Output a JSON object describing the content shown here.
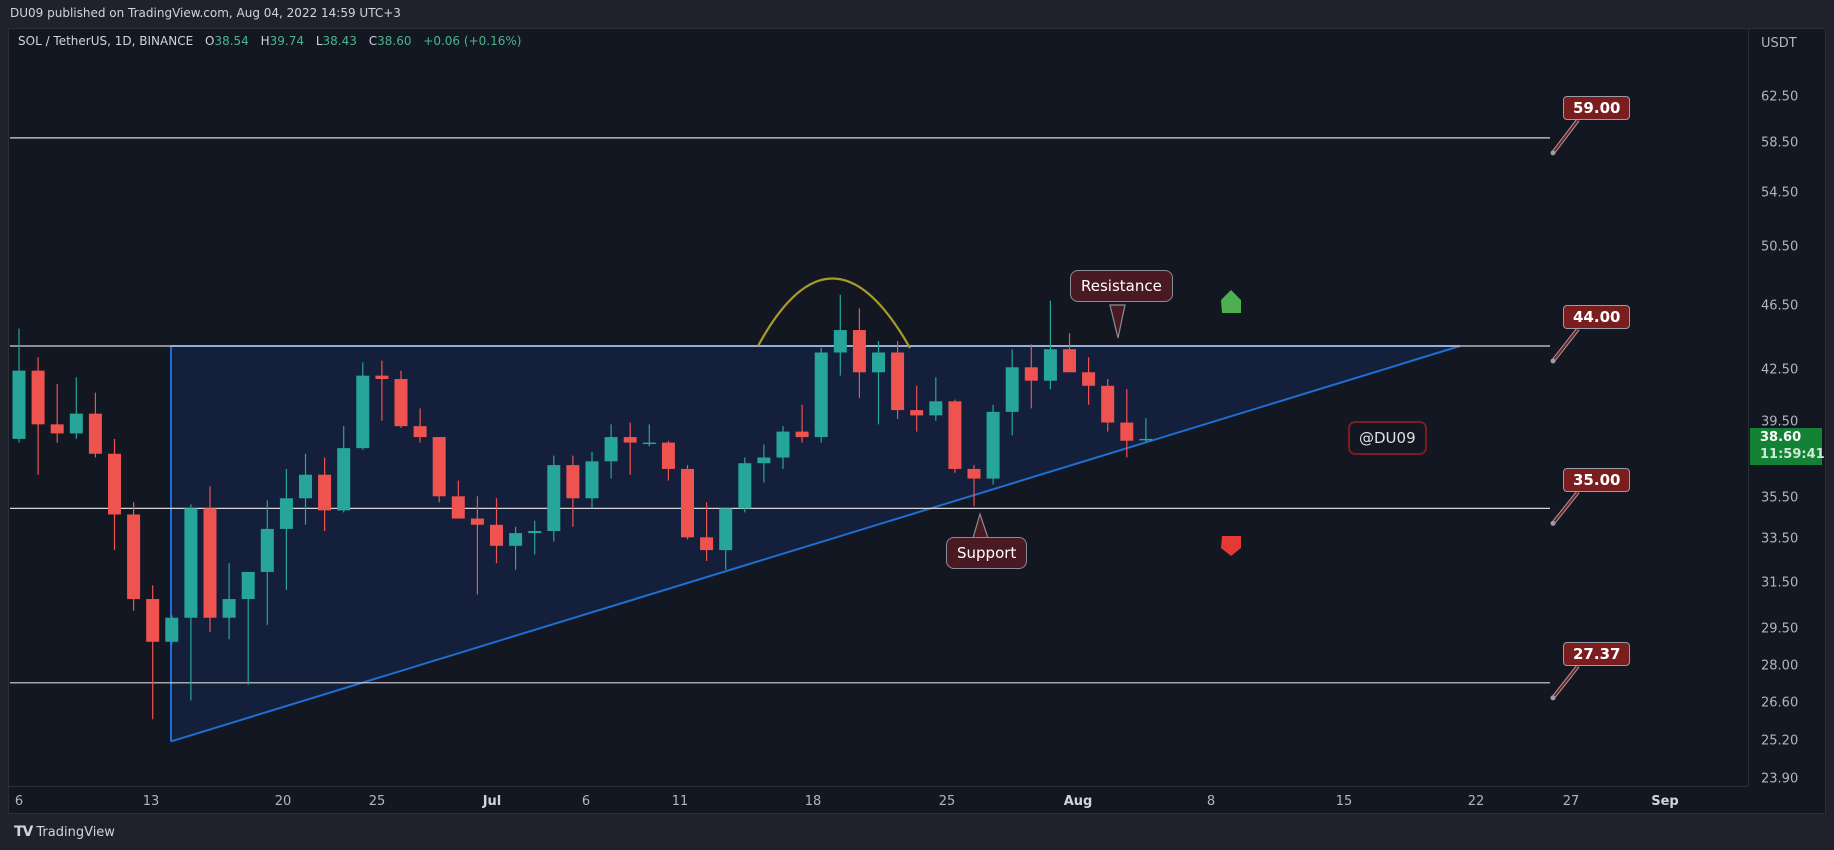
{
  "header": {
    "published": "DU09 published on TradingView.com, Aug 04, 2022 14:59 UTC+3"
  },
  "legend": {
    "symbol": "SOL / TetherUS, 1D, BINANCE",
    "open_label": "O",
    "open": "38.54",
    "high_label": "H",
    "high": "39.74",
    "low_label": "L",
    "low": "38.43",
    "close_label": "C",
    "close": "38.60",
    "change": "+0.06 (+0.16%)"
  },
  "price_axis": {
    "unit": "USDT",
    "ticks": [
      "62.50",
      "58.50",
      "54.50",
      "50.50",
      "46.50",
      "42.50",
      "39.50",
      "35.50",
      "33.50",
      "31.50",
      "29.50",
      "28.00",
      "26.60",
      "25.20",
      "23.90"
    ],
    "last_price": "38.60",
    "countdown": "11:59:41"
  },
  "time_axis": {
    "ticks": [
      "6",
      "13",
      "20",
      "25",
      "Jul",
      "6",
      "11",
      "18",
      "25",
      "Aug",
      "8",
      "15",
      "22",
      "27",
      "Sep"
    ]
  },
  "annotations": {
    "levels": [
      "59.00",
      "44.00",
      "35.00",
      "27.37"
    ],
    "resistance": "Resistance",
    "support": "Support",
    "watermark": "@DU09"
  },
  "footer": {
    "brand": "TradingView",
    "logo": "TV"
  },
  "colors": {
    "up": "#26a69a",
    "down": "#ef5350",
    "background": "#131722",
    "triangle_fill": "#13203d",
    "triangle_line": "#1e6fd1",
    "arc": "#a89a2a",
    "label_red": "#7a1d1f",
    "last_price_badge": "#138234"
  },
  "chart_data": {
    "type": "candlestick",
    "title": "SOL / TetherUS, 1D, BINANCE",
    "xlabel": "",
    "ylabel": "USDT",
    "y_scale": "log",
    "ylim": [
      23.9,
      64
    ],
    "x_range": [
      "Jun 6, 2022",
      "Sep 2022"
    ],
    "horizontal_levels": [
      59.0,
      44.0,
      35.0,
      27.37
    ],
    "pattern": "ascending triangle (resistance ~44, rising support from ~25.2 on Jun 14 to ~44 near Aug 21)",
    "last": {
      "open": 38.54,
      "high": 39.74,
      "low": 38.43,
      "close": 38.6,
      "change": 0.06,
      "change_pct": 0.16
    },
    "candles": [
      {
        "date": "Jun 6",
        "o": 38.6,
        "h": 45.1,
        "l": 38.4,
        "c": 42.5
      },
      {
        "date": "Jun 7",
        "o": 42.5,
        "h": 43.3,
        "l": 36.7,
        "c": 39.4
      },
      {
        "date": "Jun 8",
        "o": 39.4,
        "h": 41.7,
        "l": 38.4,
        "c": 38.9
      },
      {
        "date": "Jun 9",
        "o": 38.9,
        "h": 42.1,
        "l": 38.6,
        "c": 40.0
      },
      {
        "date": "Jun 10",
        "o": 40.0,
        "h": 41.2,
        "l": 37.6,
        "c": 37.8
      },
      {
        "date": "Jun 11",
        "o": 37.8,
        "h": 38.6,
        "l": 33.0,
        "c": 34.7
      },
      {
        "date": "Jun 12",
        "o": 34.7,
        "h": 35.3,
        "l": 30.3,
        "c": 30.8
      },
      {
        "date": "Jun 13",
        "o": 30.8,
        "h": 31.4,
        "l": 26.0,
        "c": 29.0
      },
      {
        "date": "Jun 14",
        "o": 29.0,
        "h": 30.1,
        "l": 28.9,
        "c": 30.0
      },
      {
        "date": "Jun 15",
        "o": 30.0,
        "h": 35.2,
        "l": 26.7,
        "c": 35.0
      },
      {
        "date": "Jun 16",
        "o": 35.0,
        "h": 36.1,
        "l": 29.4,
        "c": 30.0
      },
      {
        "date": "Jun 17",
        "o": 30.0,
        "h": 32.4,
        "l": 29.1,
        "c": 30.8
      },
      {
        "date": "Jun 18",
        "o": 30.8,
        "h": 31.5,
        "l": 27.3,
        "c": 32.0
      },
      {
        "date": "Jun 19",
        "o": 32.0,
        "h": 35.4,
        "l": 29.7,
        "c": 34.0
      },
      {
        "date": "Jun 20",
        "o": 34.0,
        "h": 37.0,
        "l": 31.2,
        "c": 35.5
      },
      {
        "date": "Jun 21",
        "o": 35.5,
        "h": 37.8,
        "l": 34.2,
        "c": 36.7
      },
      {
        "date": "Jun 22",
        "o": 36.7,
        "h": 37.6,
        "l": 33.9,
        "c": 34.9
      },
      {
        "date": "Jun 23",
        "o": 34.9,
        "h": 39.3,
        "l": 34.8,
        "c": 38.1
      },
      {
        "date": "Jun 24",
        "o": 38.1,
        "h": 43.0,
        "l": 38.0,
        "c": 42.2
      },
      {
        "date": "Jun 25",
        "o": 42.2,
        "h": 43.1,
        "l": 39.6,
        "c": 42.0
      },
      {
        "date": "Jun 26",
        "o": 42.0,
        "h": 42.5,
        "l": 39.2,
        "c": 39.3
      },
      {
        "date": "Jun 27",
        "o": 39.3,
        "h": 40.3,
        "l": 38.4,
        "c": 38.7
      },
      {
        "date": "Jun 28",
        "o": 38.7,
        "h": 38.7,
        "l": 35.3,
        "c": 35.6
      },
      {
        "date": "Jun 29",
        "o": 35.6,
        "h": 36.4,
        "l": 34.9,
        "c": 34.5
      },
      {
        "date": "Jun 30",
        "o": 34.5,
        "h": 35.6,
        "l": 31.0,
        "c": 34.2
      },
      {
        "date": "Jul 1",
        "o": 34.2,
        "h": 35.5,
        "l": 32.4,
        "c": 33.2
      },
      {
        "date": "Jul 2",
        "o": 33.2,
        "h": 34.1,
        "l": 32.1,
        "c": 33.8
      },
      {
        "date": "Jul 3",
        "o": 33.8,
        "h": 34.4,
        "l": 32.8,
        "c": 33.9
      },
      {
        "date": "Jul 4",
        "o": 33.9,
        "h": 37.7,
        "l": 33.4,
        "c": 37.2
      },
      {
        "date": "Jul 5",
        "o": 37.2,
        "h": 37.7,
        "l": 34.1,
        "c": 35.5
      },
      {
        "date": "Jul 6",
        "o": 35.5,
        "h": 37.9,
        "l": 35.0,
        "c": 37.4
      },
      {
        "date": "Jul 7",
        "o": 37.4,
        "h": 39.4,
        "l": 36.5,
        "c": 38.7
      },
      {
        "date": "Jul 8",
        "o": 38.7,
        "h": 39.5,
        "l": 36.7,
        "c": 38.4
      },
      {
        "date": "Jul 9",
        "o": 38.4,
        "h": 39.4,
        "l": 38.2,
        "c": 38.4
      },
      {
        "date": "Jul 10",
        "o": 38.4,
        "h": 38.5,
        "l": 36.4,
        "c": 37.0
      },
      {
        "date": "Jul 11",
        "o": 37.0,
        "h": 37.2,
        "l": 33.5,
        "c": 33.6
      },
      {
        "date": "Jul 12",
        "o": 33.6,
        "h": 35.3,
        "l": 32.5,
        "c": 33.0
      },
      {
        "date": "Jul 13",
        "o": 33.0,
        "h": 35.0,
        "l": 32.1,
        "c": 35.0
      },
      {
        "date": "Jul 14",
        "o": 35.0,
        "h": 37.6,
        "l": 34.8,
        "c": 37.3
      },
      {
        "date": "Jul 15",
        "o": 37.3,
        "h": 38.3,
        "l": 36.3,
        "c": 37.6
      },
      {
        "date": "Jul 16",
        "o": 37.6,
        "h": 39.3,
        "l": 37.0,
        "c": 39.0
      },
      {
        "date": "Jul 17",
        "o": 39.0,
        "h": 40.5,
        "l": 38.4,
        "c": 38.7
      },
      {
        "date": "Jul 18",
        "o": 38.7,
        "h": 43.9,
        "l": 38.4,
        "c": 43.6
      },
      {
        "date": "Jul 19",
        "o": 43.6,
        "h": 47.3,
        "l": 42.2,
        "c": 45.0
      },
      {
        "date": "Jul 20",
        "o": 45.0,
        "h": 46.4,
        "l": 40.9,
        "c": 42.4
      },
      {
        "date": "Jul 21",
        "o": 42.4,
        "h": 44.3,
        "l": 39.4,
        "c": 43.6
      },
      {
        "date": "Jul 22",
        "o": 43.6,
        "h": 44.3,
        "l": 39.7,
        "c": 40.2
      },
      {
        "date": "Jul 23",
        "o": 40.2,
        "h": 41.6,
        "l": 39.0,
        "c": 39.9
      },
      {
        "date": "Jul 24",
        "o": 39.9,
        "h": 42.1,
        "l": 39.6,
        "c": 40.7
      },
      {
        "date": "Jul 25",
        "o": 40.7,
        "h": 40.8,
        "l": 36.8,
        "c": 37.0
      },
      {
        "date": "Jul 26",
        "o": 37.0,
        "h": 37.2,
        "l": 35.1,
        "c": 36.5
      },
      {
        "date": "Jul 27",
        "o": 36.5,
        "h": 40.5,
        "l": 36.2,
        "c": 40.1
      },
      {
        "date": "Jul 28",
        "o": 40.1,
        "h": 43.8,
        "l": 38.8,
        "c": 42.7
      },
      {
        "date": "Jul 29",
        "o": 42.7,
        "h": 44.1,
        "l": 40.3,
        "c": 41.9
      },
      {
        "date": "Jul 30",
        "o": 41.9,
        "h": 46.9,
        "l": 41.4,
        "c": 43.8
      },
      {
        "date": "Jul 31",
        "o": 43.8,
        "h": 44.8,
        "l": 42.6,
        "c": 42.4
      },
      {
        "date": "Aug 1",
        "o": 42.4,
        "h": 43.3,
        "l": 40.5,
        "c": 41.6
      },
      {
        "date": "Aug 2",
        "o": 41.6,
        "h": 42.0,
        "l": 39.0,
        "c": 39.5
      },
      {
        "date": "Aug 3",
        "o": 39.5,
        "h": 41.4,
        "l": 37.6,
        "c": 38.5
      },
      {
        "date": "Aug 4",
        "o": 38.54,
        "h": 39.74,
        "l": 38.43,
        "c": 38.6
      }
    ]
  }
}
